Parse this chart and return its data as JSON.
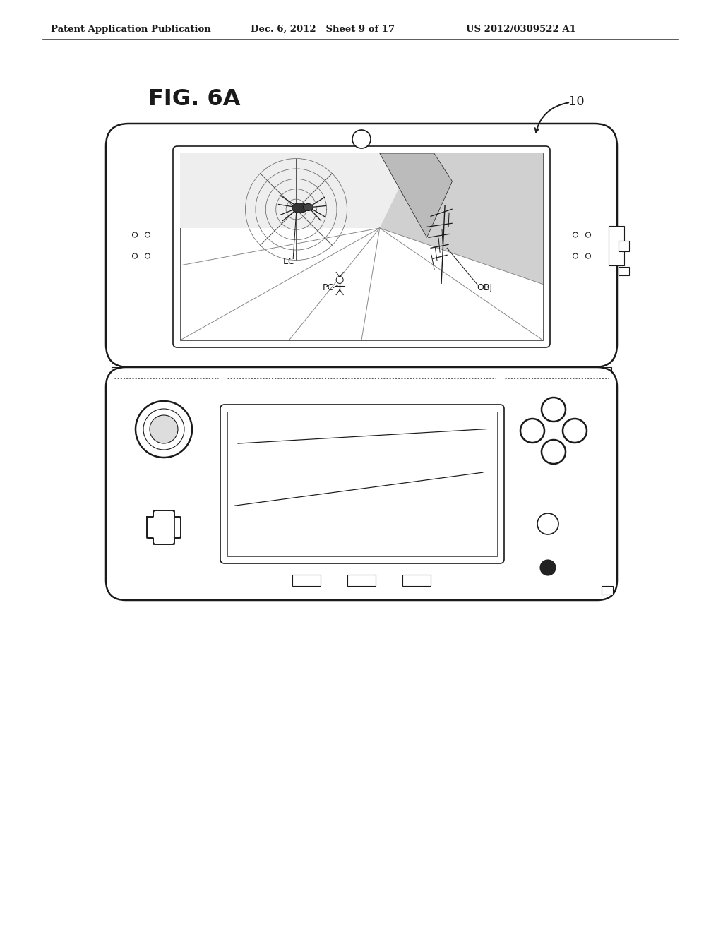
{
  "title": "FIG. 6A",
  "patent_header_left": "Patent Application Publication",
  "patent_header_mid": "Dec. 6, 2012   Sheet 9 of 17",
  "patent_header_right": "US 2012/0309522 A1",
  "ref_label": "10",
  "background_color": "#ffffff",
  "line_color": "#1a1a1a",
  "ec_label": "EC",
  "pc_label": "PC",
  "obj_label": "OBJ"
}
